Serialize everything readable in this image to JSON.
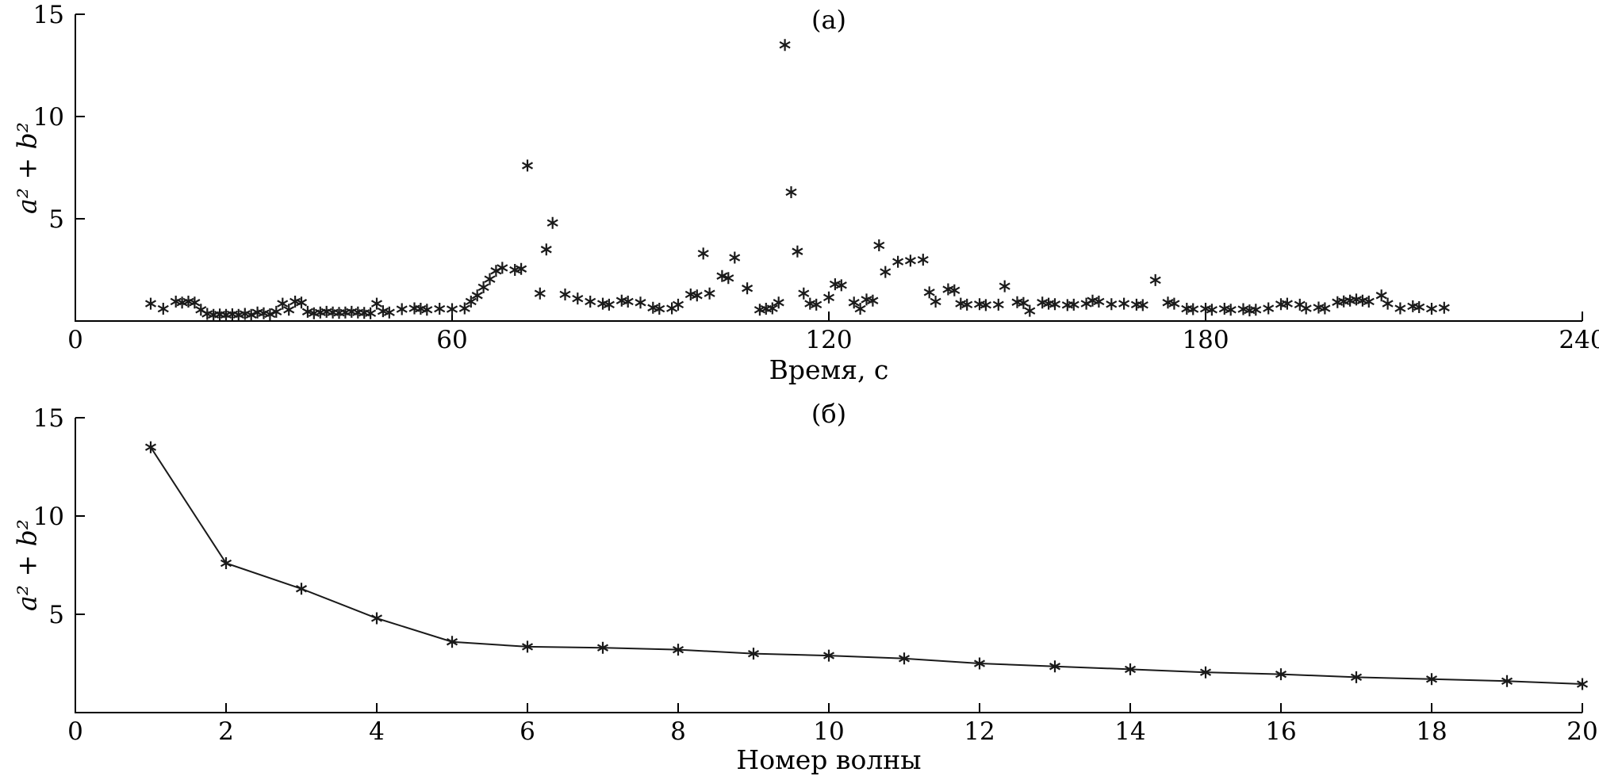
{
  "figure": {
    "background": "#ffffff",
    "axis_color": "#000000",
    "marker_color": "#1a1a1a",
    "marker_style": "asterisk"
  },
  "chart_data": [
    {
      "type": "scatter",
      "title": "(а)",
      "xlabel": "Время, с",
      "ylabel": "a² + b²",
      "xlim": [
        0,
        240
      ],
      "ylim": [
        0,
        15
      ],
      "xticks": [
        0,
        60,
        120,
        180,
        240
      ],
      "yticks": [
        5,
        10,
        15
      ],
      "grid": false,
      "legend": "none",
      "points": [
        [
          12,
          0.85
        ],
        [
          14,
          0.6
        ],
        [
          16,
          0.95
        ],
        [
          17,
          0.9
        ],
        [
          18,
          0.95
        ],
        [
          19,
          0.9
        ],
        [
          20,
          0.55
        ],
        [
          21,
          0.35
        ],
        [
          22,
          0.3
        ],
        [
          23,
          0.32
        ],
        [
          24,
          0.3
        ],
        [
          25,
          0.33
        ],
        [
          26,
          0.3
        ],
        [
          27,
          0.35
        ],
        [
          28,
          0.3
        ],
        [
          29,
          0.42
        ],
        [
          30,
          0.38
        ],
        [
          31,
          0.33
        ],
        [
          32,
          0.45
        ],
        [
          33,
          0.85
        ],
        [
          34,
          0.55
        ],
        [
          35,
          0.95
        ],
        [
          36,
          0.9
        ],
        [
          37,
          0.45
        ],
        [
          38,
          0.38
        ],
        [
          39,
          0.42
        ],
        [
          40,
          0.45
        ],
        [
          41,
          0.42
        ],
        [
          42,
          0.4
        ],
        [
          43,
          0.42
        ],
        [
          44,
          0.45
        ],
        [
          45,
          0.42
        ],
        [
          46,
          0.4
        ],
        [
          47,
          0.38
        ],
        [
          48,
          0.85
        ],
        [
          49,
          0.48
        ],
        [
          50,
          0.42
        ],
        [
          52,
          0.58
        ],
        [
          54,
          0.62
        ],
        [
          55,
          0.6
        ],
        [
          56,
          0.55
        ],
        [
          58,
          0.6
        ],
        [
          60,
          0.58
        ],
        [
          62,
          0.62
        ],
        [
          63,
          0.95
        ],
        [
          64,
          1.25
        ],
        [
          65,
          1.65
        ],
        [
          66,
          2.05
        ],
        [
          67,
          2.45
        ],
        [
          68,
          2.6
        ],
        [
          70,
          2.5
        ],
        [
          71,
          2.55
        ],
        [
          72,
          7.6
        ],
        [
          74,
          1.35
        ],
        [
          75,
          3.5
        ],
        [
          76,
          4.8
        ],
        [
          78,
          1.3
        ],
        [
          80,
          1.1
        ],
        [
          82,
          0.95
        ],
        [
          84,
          0.85
        ],
        [
          85,
          0.8
        ],
        [
          87,
          1.0
        ],
        [
          88,
          0.95
        ],
        [
          90,
          0.9
        ],
        [
          92,
          0.65
        ],
        [
          93,
          0.6
        ],
        [
          95,
          0.62
        ],
        [
          96,
          0.8
        ],
        [
          98,
          1.3
        ],
        [
          99,
          1.25
        ],
        [
          100,
          3.3
        ],
        [
          101,
          1.35
        ],
        [
          103,
          2.2
        ],
        [
          104,
          2.1
        ],
        [
          105,
          3.1
        ],
        [
          107,
          1.6
        ],
        [
          109,
          0.55
        ],
        [
          110,
          0.6
        ],
        [
          111,
          0.62
        ],
        [
          112,
          0.9
        ],
        [
          113,
          13.5
        ],
        [
          114,
          6.3
        ],
        [
          115,
          3.4
        ],
        [
          116,
          1.35
        ],
        [
          117,
          0.85
        ],
        [
          118,
          0.8
        ],
        [
          120,
          1.15
        ],
        [
          121,
          1.8
        ],
        [
          122,
          1.75
        ],
        [
          124,
          0.9
        ],
        [
          125,
          0.6
        ],
        [
          126,
          1.05
        ],
        [
          127,
          1.0
        ],
        [
          128,
          3.7
        ],
        [
          129,
          2.4
        ],
        [
          131,
          2.9
        ],
        [
          133,
          2.95
        ],
        [
          135,
          3.0
        ],
        [
          136,
          1.4
        ],
        [
          137,
          0.95
        ],
        [
          139,
          1.55
        ],
        [
          140,
          1.5
        ],
        [
          141,
          0.85
        ],
        [
          142,
          0.8
        ],
        [
          144,
          0.82
        ],
        [
          145,
          0.78
        ],
        [
          147,
          0.8
        ],
        [
          148,
          1.7
        ],
        [
          150,
          0.92
        ],
        [
          151,
          0.88
        ],
        [
          152,
          0.5
        ],
        [
          154,
          0.9
        ],
        [
          155,
          0.85
        ],
        [
          156,
          0.82
        ],
        [
          158,
          0.78
        ],
        [
          159,
          0.8
        ],
        [
          161,
          0.85
        ],
        [
          162,
          1.0
        ],
        [
          163,
          0.95
        ],
        [
          165,
          0.82
        ],
        [
          167,
          0.85
        ],
        [
          169,
          0.8
        ],
        [
          170,
          0.78
        ],
        [
          172,
          2.0
        ],
        [
          174,
          0.9
        ],
        [
          175,
          0.85
        ],
        [
          177,
          0.6
        ],
        [
          178,
          0.58
        ],
        [
          180,
          0.6
        ],
        [
          181,
          0.55
        ],
        [
          183,
          0.6
        ],
        [
          184,
          0.55
        ],
        [
          186,
          0.58
        ],
        [
          187,
          0.52
        ],
        [
          188,
          0.55
        ],
        [
          190,
          0.62
        ],
        [
          192,
          0.82
        ],
        [
          193,
          0.85
        ],
        [
          195,
          0.8
        ],
        [
          196,
          0.62
        ],
        [
          198,
          0.66
        ],
        [
          199,
          0.62
        ],
        [
          201,
          0.92
        ],
        [
          202,
          0.96
        ],
        [
          203,
          1.0
        ],
        [
          204,
          1.05
        ],
        [
          205,
          1.0
        ],
        [
          206,
          0.95
        ],
        [
          208,
          1.25
        ],
        [
          209,
          0.85
        ],
        [
          211,
          0.62
        ],
        [
          213,
          0.72
        ],
        [
          214,
          0.68
        ],
        [
          216,
          0.6
        ],
        [
          218,
          0.65
        ]
      ]
    },
    {
      "type": "line",
      "title": "(б)",
      "xlabel": "Номер волны",
      "ylabel": "a² + b²",
      "xlim": [
        0,
        20
      ],
      "ylim": [
        0,
        15
      ],
      "xticks": [
        0,
        2,
        4,
        6,
        8,
        10,
        12,
        14,
        16,
        18,
        20
      ],
      "yticks": [
        5,
        10,
        15
      ],
      "grid": false,
      "legend": "none",
      "x": [
        1,
        2,
        3,
        4,
        5,
        6,
        7,
        8,
        9,
        10,
        11,
        12,
        13,
        14,
        15,
        16,
        17,
        18,
        19,
        20
      ],
      "y": [
        13.5,
        7.6,
        6.3,
        4.8,
        3.6,
        3.35,
        3.3,
        3.2,
        3.0,
        2.9,
        2.75,
        2.5,
        2.35,
        2.2,
        2.05,
        1.95,
        1.8,
        1.7,
        1.6,
        1.45
      ]
    }
  ]
}
